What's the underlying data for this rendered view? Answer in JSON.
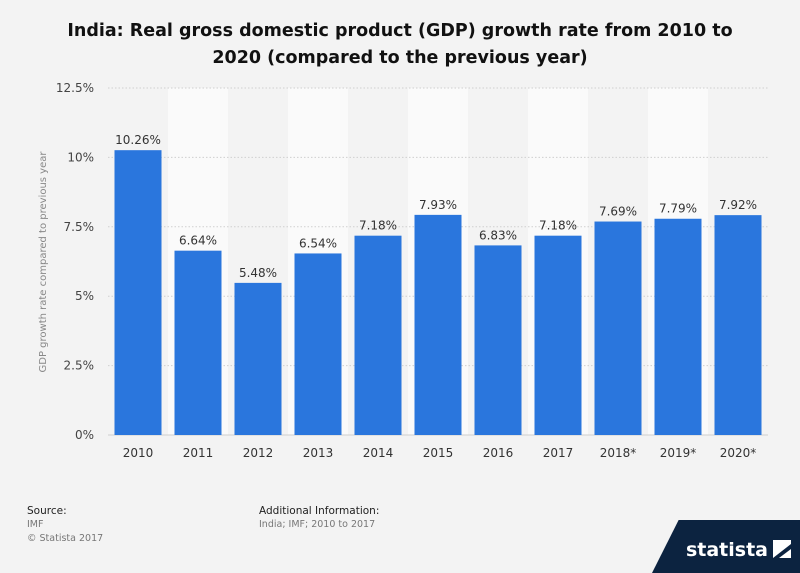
{
  "chart_data": {
    "type": "bar",
    "title": "India: Real gross domestic product (GDP) growth rate from 2010 to 2020 (compared to the previous year)",
    "ylabel": "GDP growth rate compared to previous year",
    "xlabel": "",
    "categories": [
      "2010",
      "2011",
      "2012",
      "2013",
      "2014",
      "2015",
      "2016",
      "2017",
      "2018*",
      "2019*",
      "2020*"
    ],
    "values": [
      10.26,
      6.64,
      5.48,
      6.54,
      7.18,
      7.93,
      6.83,
      7.18,
      7.69,
      7.79,
      7.92
    ],
    "data_labels": [
      "10.26%",
      "6.64%",
      "5.48%",
      "6.54%",
      "7.18%",
      "7.93%",
      "6.83%",
      "7.18%",
      "7.69%",
      "7.79%",
      "7.92%"
    ],
    "ylim": [
      0,
      12.5
    ],
    "yticks": [
      0,
      2.5,
      5,
      7.5,
      10,
      12.5
    ],
    "ytick_labels": [
      "0%",
      "2.5%",
      "5%",
      "7.5%",
      "10%",
      "12.5%"
    ],
    "grid": true,
    "bar_color": "#2a76dd"
  },
  "footer": {
    "source_label": "Source:",
    "source_value": "IMF",
    "copyright": "© Statista 2017",
    "info_label": "Additional Information:",
    "info_value": "India; IMF; 2010 to 2017"
  },
  "brand": {
    "name": "statista"
  }
}
